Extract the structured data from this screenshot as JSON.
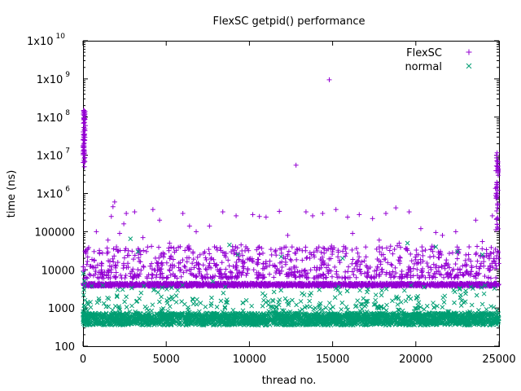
{
  "chart_data": {
    "type": "scatter",
    "title": "FlexSC getpid() performance",
    "xlabel": "thread no.",
    "ylabel": "time (ns)",
    "xlim": [
      0,
      25000
    ],
    "ylim": [
      100,
      10000000000
    ],
    "yscale": "log",
    "grid": false,
    "legend_position": "top-right",
    "xticks": [
      {
        "value": 0,
        "label": "0"
      },
      {
        "value": 5000,
        "label": "5000"
      },
      {
        "value": 10000,
        "label": "10000"
      },
      {
        "value": 15000,
        "label": "15000"
      },
      {
        "value": 20000,
        "label": "20000"
      },
      {
        "value": 25000,
        "label": "25000"
      }
    ],
    "yticks": [
      {
        "value": 100,
        "base": "100",
        "exp": ""
      },
      {
        "value": 1000,
        "base": "1000",
        "exp": ""
      },
      {
        "value": 10000,
        "base": "10000",
        "exp": ""
      },
      {
        "value": 100000,
        "base": "100000",
        "exp": ""
      },
      {
        "value": 1000000,
        "base": "1x10",
        "exp": "6"
      },
      {
        "value": 10000000,
        "base": "1x10",
        "exp": "7"
      },
      {
        "value": 100000000,
        "base": "1x10",
        "exp": "8"
      },
      {
        "value": 1000000000,
        "base": "1x10",
        "exp": "9"
      },
      {
        "value": 10000000000,
        "base": "1x10",
        "exp": "10"
      }
    ],
    "series": [
      {
        "name": "FlexSC",
        "marker": "plus",
        "color": "#9400d3",
        "points": [
          [
            20,
            120000000
          ],
          [
            60,
            150000000
          ],
          [
            100,
            90000000
          ],
          [
            140,
            60000000
          ],
          [
            80,
            5000000
          ],
          [
            40,
            30000000
          ],
          [
            120,
            140000000
          ],
          [
            10,
            12000
          ],
          [
            1800,
            450000
          ],
          [
            1900,
            600000
          ],
          [
            1700,
            250000
          ],
          [
            2600,
            300000
          ],
          [
            2450,
            160000
          ],
          [
            3100,
            330000
          ],
          [
            4200,
            380000
          ],
          [
            4600,
            200000
          ],
          [
            6000,
            300000
          ],
          [
            6400,
            140000
          ],
          [
            7600,
            140000
          ],
          [
            8400,
            330000
          ],
          [
            9200,
            260000
          ],
          [
            10200,
            280000
          ],
          [
            10600,
            250000
          ],
          [
            11000,
            240000
          ],
          [
            11800,
            340000
          ],
          [
            12800,
            5500000
          ],
          [
            13400,
            330000
          ],
          [
            13800,
            260000
          ],
          [
            14400,
            300000
          ],
          [
            14800,
            950000000
          ],
          [
            15200,
            380000
          ],
          [
            15900,
            240000
          ],
          [
            16600,
            280000
          ],
          [
            17400,
            220000
          ],
          [
            18200,
            300000
          ],
          [
            18800,
            420000
          ],
          [
            19600,
            330000
          ],
          [
            21600,
            80000
          ],
          [
            22400,
            100000
          ],
          [
            23600,
            200000
          ],
          [
            24600,
            260000
          ],
          [
            24900,
            900000
          ],
          [
            24850,
            10000000
          ],
          [
            24900,
            7000000
          ],
          [
            24950,
            3000000
          ],
          [
            24880,
            1500000
          ],
          [
            24920,
            5000000
          ],
          [
            800,
            100000
          ],
          [
            1500,
            60000
          ],
          [
            2200,
            90000
          ],
          [
            3600,
            70000
          ],
          [
            5200,
            50000
          ],
          [
            6800,
            100000
          ],
          [
            7900,
            40000
          ],
          [
            9500,
            45000
          ],
          [
            12300,
            80000
          ],
          [
            13000,
            35000
          ],
          [
            16200,
            90000
          ],
          [
            17800,
            60000
          ],
          [
            19000,
            50000
          ],
          [
            20300,
            120000
          ],
          [
            21200,
            95000
          ],
          [
            23200,
            40000
          ],
          [
            24000,
            55000
          ]
        ]
      },
      {
        "name": "normal",
        "marker": "cross",
        "color": "#009e73",
        "points": [
          [
            2850,
            65000
          ],
          [
            3300,
            30000
          ],
          [
            8800,
            45000
          ],
          [
            9300,
            25000
          ],
          [
            11900,
            22000
          ],
          [
            15600,
            20000
          ],
          [
            19500,
            50000
          ],
          [
            21200,
            40000
          ],
          [
            22500,
            30000
          ],
          [
            24000,
            25000
          ],
          [
            5600,
            2100
          ],
          [
            7800,
            5000
          ],
          [
            10800,
            2400
          ],
          [
            14200,
            3000
          ],
          [
            17600,
            2200
          ],
          [
            20500,
            3500
          ],
          [
            23000,
            2800
          ],
          [
            50,
            3000
          ],
          [
            80,
            5000
          ],
          [
            20,
            8000
          ]
        ]
      }
    ]
  }
}
